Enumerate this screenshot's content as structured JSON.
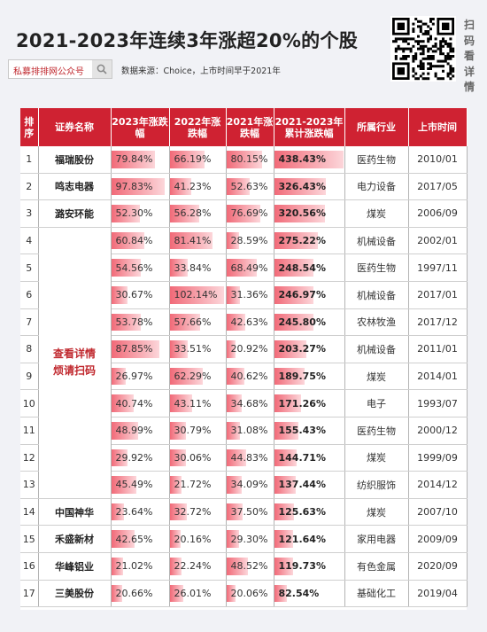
{
  "title": "2021-2023年连续3年涨超20%的个股",
  "search": {
    "text": "私募排排网公众号"
  },
  "source": "数据来源：Choice，上市时间早于2021年",
  "scan_text": [
    "扫",
    "码",
    "看",
    "详",
    "情"
  ],
  "promo_text": [
    "查看详情",
    "烦请扫码"
  ],
  "headers": [
    "排序",
    "证券名称",
    "2023年涨跌幅",
    "2022年涨跌幅",
    "2021年涨跌幅",
    "2021-2023年累计涨跌幅",
    "所属行业",
    "上市时间"
  ],
  "rows": [
    {
      "rank": "1",
      "name": "福瑞股份",
      "y2023": "79.84%",
      "y2022": "66.19%",
      "y2021": "80.15%",
      "cum": "438.43%",
      "industry": "医药生物",
      "listed": "2010/01"
    },
    {
      "rank": "2",
      "name": "鸣志电器",
      "y2023": "97.83%",
      "y2022": "41.23%",
      "y2021": "52.63%",
      "cum": "326.43%",
      "industry": "电力设备",
      "listed": "2017/05"
    },
    {
      "rank": "3",
      "name": "潞安环能",
      "y2023": "52.30%",
      "y2022": "56.28%",
      "y2021": "76.69%",
      "cum": "320.56%",
      "industry": "煤炭",
      "listed": "2006/09"
    },
    {
      "rank": "4",
      "name": "",
      "y2023": "60.84%",
      "y2022": "81.41%",
      "y2021": "28.59%",
      "cum": "275.22%",
      "industry": "机械设备",
      "listed": "2002/01"
    },
    {
      "rank": "5",
      "name": "",
      "y2023": "54.56%",
      "y2022": "33.84%",
      "y2021": "68.49%",
      "cum": "248.54%",
      "industry": "医药生物",
      "listed": "1997/11"
    },
    {
      "rank": "6",
      "name": "",
      "y2023": "30.67%",
      "y2022": "102.14%",
      "y2021": "31.36%",
      "cum": "246.97%",
      "industry": "机械设备",
      "listed": "2017/01"
    },
    {
      "rank": "7",
      "name": "",
      "y2023": "53.78%",
      "y2022": "57.66%",
      "y2021": "42.63%",
      "cum": "245.80%",
      "industry": "农林牧渔",
      "listed": "2017/12"
    },
    {
      "rank": "8",
      "name": "",
      "y2023": "87.85%",
      "y2022": "33.51%",
      "y2021": "20.92%",
      "cum": "203.27%",
      "industry": "机械设备",
      "listed": "2011/01"
    },
    {
      "rank": "9",
      "name": "",
      "y2023": "26.97%",
      "y2022": "62.29%",
      "y2021": "40.62%",
      "cum": "189.75%",
      "industry": "煤炭",
      "listed": "2014/01"
    },
    {
      "rank": "10",
      "name": "",
      "y2023": "40.74%",
      "y2022": "43.11%",
      "y2021": "34.68%",
      "cum": "171.26%",
      "industry": "电子",
      "listed": "1993/07"
    },
    {
      "rank": "11",
      "name": "",
      "y2023": "48.99%",
      "y2022": "30.79%",
      "y2021": "31.08%",
      "cum": "155.43%",
      "industry": "医药生物",
      "listed": "2000/12"
    },
    {
      "rank": "12",
      "name": "",
      "y2023": "29.92%",
      "y2022": "30.06%",
      "y2021": "44.83%",
      "cum": "144.71%",
      "industry": "煤炭",
      "listed": "1999/09"
    },
    {
      "rank": "13",
      "name": "",
      "y2023": "45.49%",
      "y2022": "21.72%",
      "y2021": "34.09%",
      "cum": "137.44%",
      "industry": "纺织服饰",
      "listed": "2014/12"
    },
    {
      "rank": "14",
      "name": "中国神华",
      "y2023": "23.64%",
      "y2022": "32.72%",
      "y2021": "37.50%",
      "cum": "125.63%",
      "industry": "煤炭",
      "listed": "2007/10"
    },
    {
      "rank": "15",
      "name": "禾盛新材",
      "y2023": "42.65%",
      "y2022": "20.16%",
      "y2021": "29.30%",
      "cum": "121.64%",
      "industry": "家用电器",
      "listed": "2009/09"
    },
    {
      "rank": "16",
      "name": "华峰铝业",
      "y2023": "21.02%",
      "y2022": "22.24%",
      "y2021": "48.52%",
      "cum": "119.73%",
      "industry": "有色金属",
      "listed": "2020/09"
    },
    {
      "rank": "17",
      "name": "三美股份",
      "y2023": "20.66%",
      "y2022": "26.01%",
      "y2021": "20.06%",
      "cum": "82.54%",
      "industry": "基础化工",
      "listed": "2019/04"
    }
  ]
}
